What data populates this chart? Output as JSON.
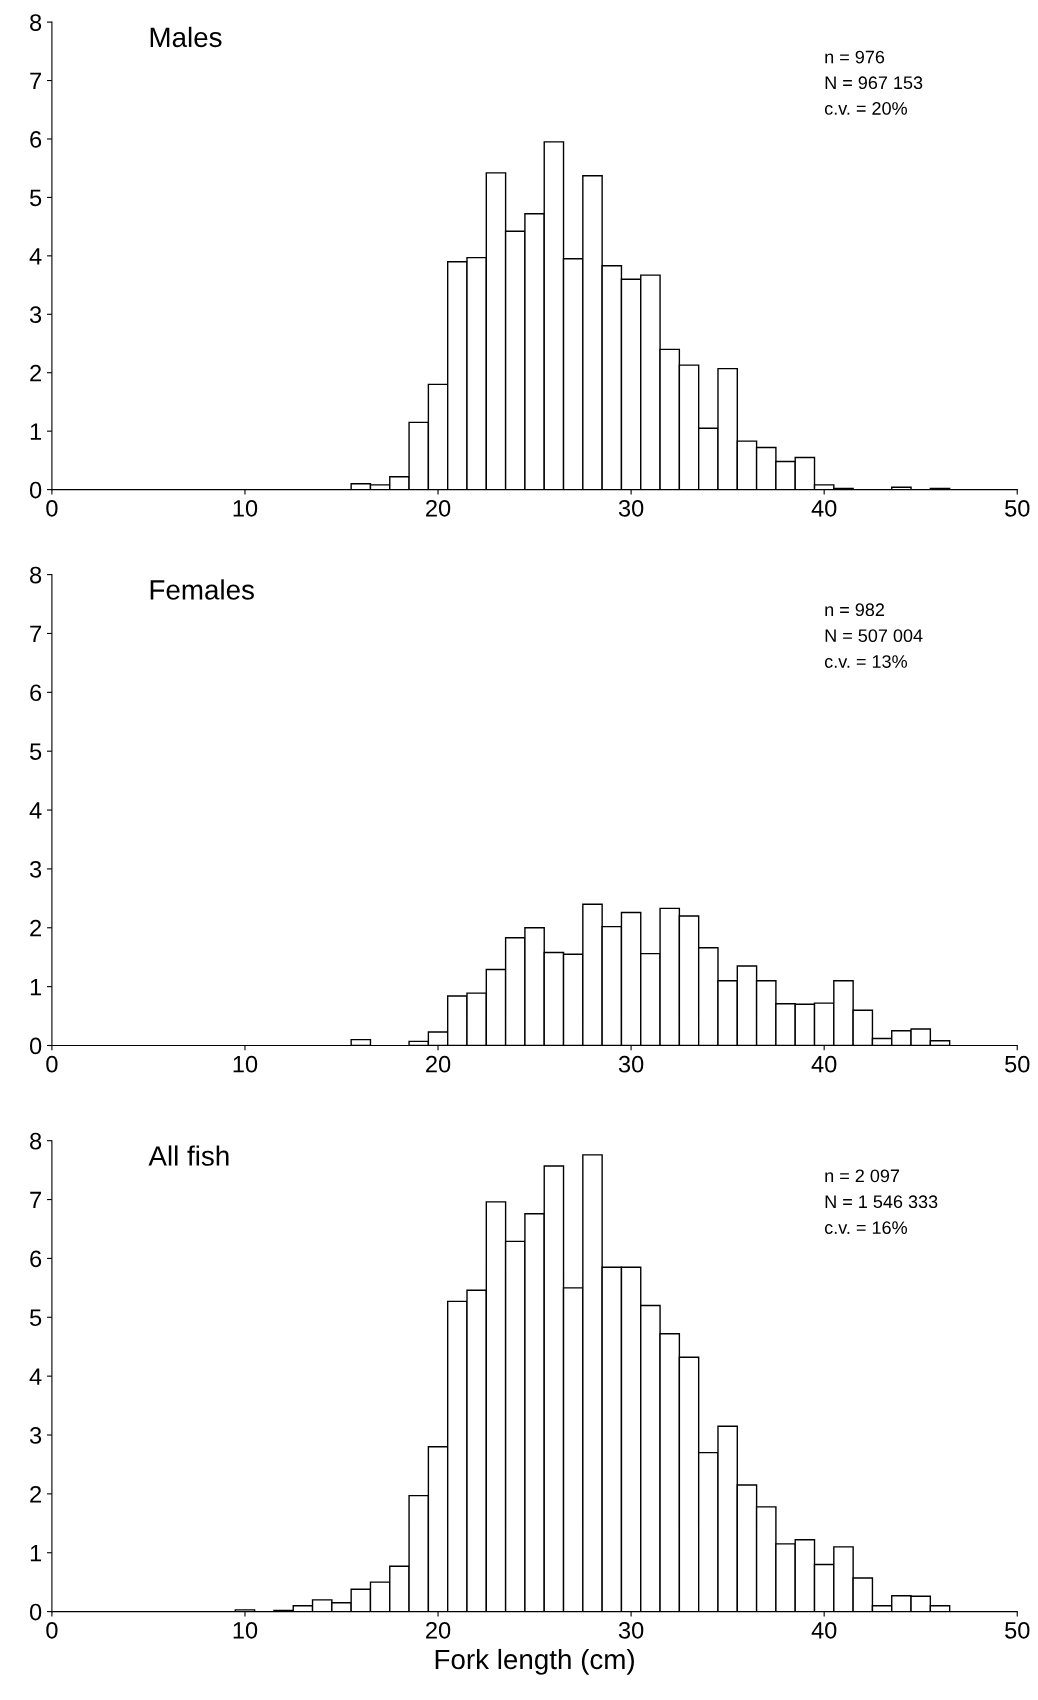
{
  "chart_data": [
    {
      "type": "histogram",
      "title": "Males",
      "bins": [
        15.5,
        16.5,
        17.5,
        18.5,
        19.5,
        20.5,
        21.5,
        22.5,
        23.5,
        24.5,
        25.5,
        26.5,
        27.5,
        28.5,
        29.5,
        30.5,
        31.5,
        32.5,
        33.5,
        34.5,
        35.5,
        36.5,
        37.5,
        38.5,
        39.5,
        40.5,
        41.5,
        42.5,
        43.5,
        44.5,
        45.5,
        46.5
      ],
      "values": [
        0.1,
        0.08,
        0.22,
        1.15,
        1.8,
        3.9,
        3.97,
        5.42,
        4.42,
        4.72,
        5.95,
        3.95,
        5.37,
        3.83,
        3.6,
        3.67,
        2.4,
        2.13,
        1.05,
        2.07,
        0.83,
        0.72,
        0.48,
        0.55,
        0.08,
        0.02,
        0,
        0,
        0.04,
        0,
        0.02
      ],
      "color": "#ffffff",
      "annotations": [
        "n = 976",
        "N = 967 153",
        "c.v. = 20%"
      ],
      "xlim": [
        0,
        50
      ],
      "xticks": [
        0,
        10,
        20,
        30,
        40,
        50
      ],
      "ylim": [
        0,
        8
      ],
      "yticks": [
        0,
        1,
        2,
        3,
        4,
        5,
        6,
        7,
        8
      ],
      "grid": false,
      "legend": false
    },
    {
      "type": "histogram",
      "title": "Females",
      "bins": [
        15.5,
        16.5,
        17.5,
        18.5,
        19.5,
        20.5,
        21.5,
        22.5,
        23.5,
        24.5,
        25.5,
        26.5,
        27.5,
        28.5,
        29.5,
        30.5,
        31.5,
        32.5,
        33.5,
        34.5,
        35.5,
        36.5,
        37.5,
        38.5,
        39.5,
        40.5,
        41.5,
        42.5,
        43.5,
        44.5,
        45.5,
        46.5
      ],
      "values": [
        0.1,
        0,
        0,
        0.07,
        0.23,
        0.84,
        0.89,
        1.29,
        1.83,
        2.0,
        1.58,
        1.55,
        2.4,
        2.02,
        2.26,
        1.56,
        2.33,
        2.2,
        1.66,
        1.1,
        1.35,
        1.1,
        0.71,
        0.7,
        0.72,
        1.1,
        0.6,
        0.12,
        0.25,
        0.28,
        0.08
      ],
      "color": "#ffffff",
      "annotations": [
        "n = 982",
        "N = 507 004",
        "c.v. = 13%"
      ],
      "xlim": [
        0,
        50
      ],
      "xticks": [
        0,
        10,
        20,
        30,
        40,
        50
      ],
      "ylim": [
        0,
        8
      ],
      "yticks": [
        0,
        1,
        2,
        3,
        4,
        5,
        6,
        7,
        8
      ],
      "grid": false,
      "legend": false
    },
    {
      "type": "histogram",
      "title": "All fish",
      "xlabel": "Fork length (cm)",
      "bins": [
        9.5,
        10.5,
        11.5,
        12.5,
        13.5,
        14.5,
        15.5,
        16.5,
        17.5,
        18.5,
        19.5,
        20.5,
        21.5,
        22.5,
        23.5,
        24.5,
        25.5,
        26.5,
        27.5,
        28.5,
        29.5,
        30.5,
        31.5,
        32.5,
        33.5,
        34.5,
        35.5,
        36.5,
        37.5,
        38.5,
        39.5,
        40.5,
        41.5,
        42.5,
        43.5,
        44.5,
        45.5,
        46.5
      ],
      "values": [
        0.03,
        0,
        0.02,
        0.1,
        0.2,
        0.15,
        0.38,
        0.5,
        0.77,
        1.97,
        2.8,
        5.27,
        5.46,
        6.96,
        6.29,
        6.76,
        7.57,
        5.5,
        7.76,
        5.85,
        5.85,
        5.2,
        4.72,
        4.32,
        2.7,
        3.15,
        2.15,
        1.78,
        1.15,
        1.22,
        0.8,
        1.1,
        0.57,
        0.1,
        0.27,
        0.26,
        0.1
      ],
      "color": "#ffffff",
      "annotations": [
        "n = 2 097",
        "N = 1 546 333",
        "c.v. = 16%"
      ],
      "xlim": [
        0,
        50
      ],
      "xticks": [
        0,
        10,
        20,
        30,
        40,
        50
      ],
      "ylim": [
        0,
        8
      ],
      "yticks": [
        0,
        1,
        2,
        3,
        4,
        5,
        6,
        7,
        8
      ],
      "grid": false,
      "legend": false
    }
  ]
}
